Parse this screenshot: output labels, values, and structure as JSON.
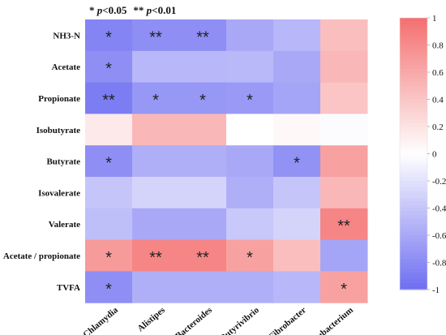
{
  "significance_note": {
    "p05": "* p<0.05",
    "p01": "** p<0.01",
    "parts": {
      "star1": "* ",
      "p1": "p",
      "rest1": "<0.05",
      "star2": "** ",
      "p2": "p",
      "rest2": "<0.01"
    }
  },
  "colors": {
    "negative": "#6e6ef2",
    "zero": "#ffffff",
    "positive": "#f46f6f"
  },
  "chart_data": {
    "type": "heatmap",
    "title": "",
    "rows": [
      "NH3-N",
      "Acetate",
      "Propionate",
      "Isobutyrate",
      "Butyrate",
      "Isovalerate",
      "Valerate",
      "Acetate / propionate",
      "TVFA"
    ],
    "columns": [
      "Chlamydia",
      "Alistipes",
      "Bacteroides",
      "Butyrivibrio",
      "Fibrobacter",
      "Eubacterium"
    ],
    "values": [
      [
        -0.85,
        -0.78,
        -0.78,
        -0.6,
        -0.5,
        0.45
      ],
      [
        -0.78,
        -0.5,
        -0.5,
        -0.48,
        -0.6,
        0.5
      ],
      [
        -0.9,
        -0.72,
        -0.72,
        -0.7,
        -0.62,
        0.4
      ],
      [
        0.15,
        0.5,
        0.5,
        0.0,
        0.05,
        -0.02
      ],
      [
        -0.78,
        -0.55,
        -0.55,
        -0.6,
        -0.75,
        0.65
      ],
      [
        -0.4,
        -0.3,
        -0.3,
        -0.55,
        -0.4,
        0.5
      ],
      [
        -0.45,
        -0.6,
        -0.6,
        -0.38,
        -0.3,
        0.85
      ],
      [
        0.7,
        0.85,
        0.85,
        0.65,
        0.45,
        -0.62
      ],
      [
        -0.78,
        -0.55,
        -0.55,
        -0.55,
        -0.5,
        0.65
      ]
    ],
    "significance": [
      [
        "*",
        "**",
        "**",
        "",
        "",
        ""
      ],
      [
        "*",
        "",
        "",
        "",
        "",
        ""
      ],
      [
        "**",
        "*",
        "*",
        "*",
        "",
        ""
      ],
      [
        "",
        "",
        "",
        "",
        "",
        ""
      ],
      [
        "*",
        "",
        "",
        "",
        "*",
        ""
      ],
      [
        "",
        "",
        "",
        "",
        "",
        ""
      ],
      [
        "",
        "",
        "",
        "",
        "",
        "**"
      ],
      [
        "*",
        "**",
        "**",
        "*",
        "",
        ""
      ],
      [
        "*",
        "",
        "",
        "",
        "",
        "*"
      ]
    ],
    "colorbar": {
      "range": [
        -1,
        1
      ],
      "ticks": [
        1,
        0.8,
        0.6,
        0.4,
        0.2,
        0,
        -0.2,
        -0.4,
        -0.6,
        -0.8,
        -1
      ],
      "tick_labels": [
        "1",
        "0.8",
        "0.6",
        "0.4",
        "0.2",
        "0",
        "-0.2",
        "-0.4",
        "-0.6",
        "-0.8",
        "-1"
      ],
      "placement": "right"
    }
  }
}
